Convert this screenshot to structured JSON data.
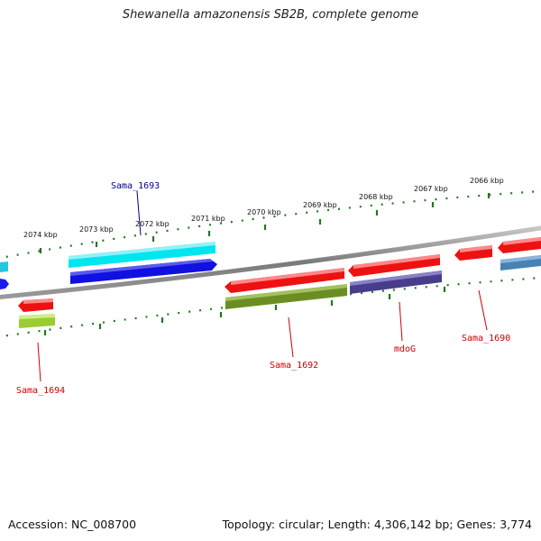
{
  "title": "Shewanella amazonensis SB2B, complete genome",
  "footer": {
    "accession": "Accession: NC_008700",
    "stats": "Topology: circular; Length: 4,306,142 bp; Genes: 3,774"
  },
  "colors": {
    "backbone": "#8a8a8a",
    "tick": "#1f7a1f",
    "label_blue": "#00008b",
    "label_red": "#cc0000"
  },
  "ticks": [
    "2074 kbp",
    "2073 kbp",
    "2072 kbp",
    "2071 kbp",
    "2070 kbp",
    "2069 kbp",
    "2068 kbp",
    "2067 kbp",
    "2066 kbp"
  ],
  "gene_labels": [
    {
      "id": "sama-1693",
      "text": "Sama_1693",
      "color": "blue"
    },
    {
      "id": "sama-1694",
      "text": "Sama_1694",
      "color": "red"
    },
    {
      "id": "sama-1692",
      "text": "Sama_1692",
      "color": "red"
    },
    {
      "id": "mdog",
      "text": "mdoG",
      "color": "red"
    },
    {
      "id": "sama-1690",
      "text": "Sama_1690",
      "color": "red"
    }
  ],
  "feature_colors": {
    "edge_cyan": "#22c8e0",
    "edge_blue": "#1a1aee",
    "cyan": "#00e5ee",
    "blue": "#1010e0",
    "red": "#ee1111",
    "olive": "#6b8e23",
    "purple": "#483d8b",
    "lime": "#9acd32",
    "steel": "#4682b4"
  }
}
